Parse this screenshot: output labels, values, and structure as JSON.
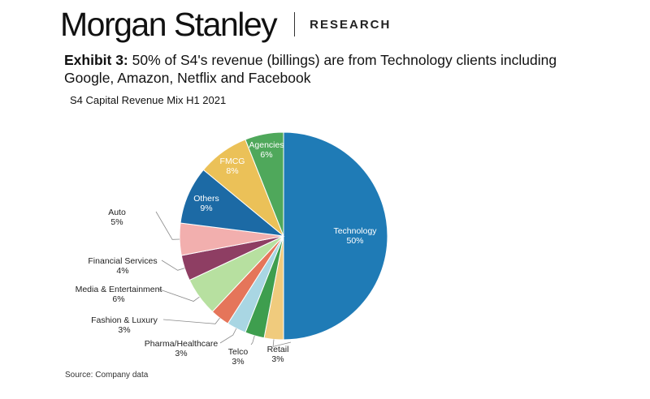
{
  "header": {
    "brand": "Morgan Stanley",
    "tag": "RESEARCH"
  },
  "exhibit": {
    "label": "Exhibit 3:",
    "text": "50% of S4's revenue (billings) are from Technology clients including Google, Amazon, Netflix and Facebook"
  },
  "footer": {
    "source": "Source: Company data"
  },
  "chart_data": {
    "type": "pie",
    "title": "S4 Capital Revenue Mix H1 2021",
    "start": "12 o'clock",
    "direction": "clockwise",
    "slices": [
      {
        "label": "Technology",
        "value": 50,
        "display": "50%",
        "color": "#1F7BB6"
      },
      {
        "label": "Retail",
        "value": 3,
        "display": "3%",
        "color": "#F0CB7D"
      },
      {
        "label": "Telco",
        "value": 3,
        "display": "3%",
        "color": "#3E9E4E"
      },
      {
        "label": "Pharma/Healthcare",
        "value": 3,
        "display": "3%",
        "color": "#A9D6E3"
      },
      {
        "label": "Fashion & Luxury",
        "value": 3,
        "display": "3%",
        "color": "#E5755A"
      },
      {
        "label": "Media & Entertainment",
        "value": 6,
        "display": "6%",
        "color": "#B7E0A0"
      },
      {
        "label": "Financial Services",
        "value": 4,
        "display": "4%",
        "color": "#8E3E63"
      },
      {
        "label": "Auto",
        "value": 5,
        "display": "5%",
        "color": "#F2AFAE"
      },
      {
        "label": "Others",
        "value": 9,
        "display": "9%",
        "color": "#1C6AA5"
      },
      {
        "label": "FMCG",
        "value": 8,
        "display": "8%",
        "color": "#EBC158"
      },
      {
        "label": "Agencies",
        "value": 6,
        "display": "6%",
        "color": "#4FA85B"
      }
    ]
  }
}
